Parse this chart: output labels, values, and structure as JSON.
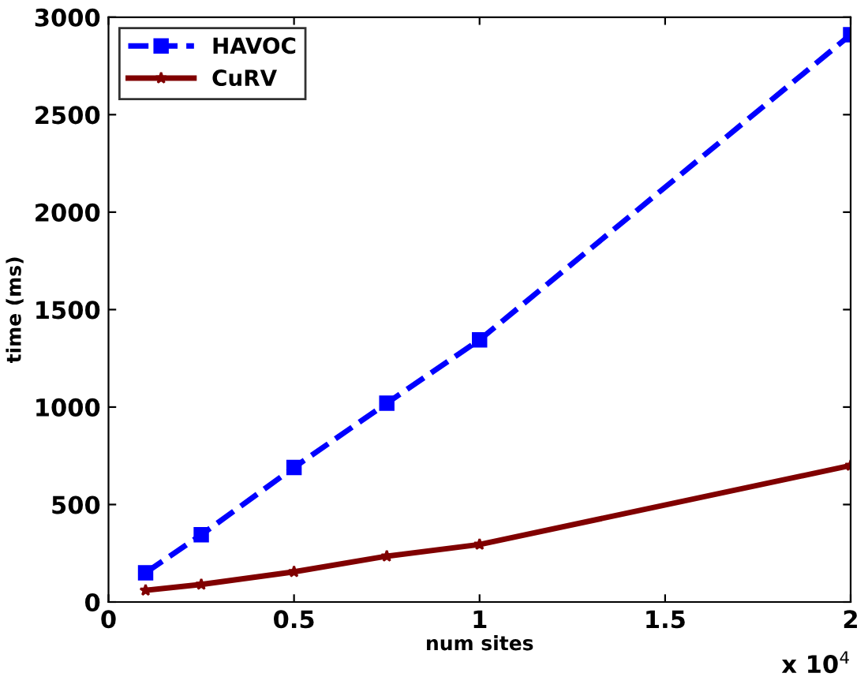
{
  "chart_data": {
    "type": "line",
    "xlabel": "num sites",
    "ylabel": "time (ms)",
    "x": [
      0.1,
      0.25,
      0.5,
      0.75,
      1,
      2
    ],
    "series": [
      {
        "name": "HAVOC",
        "color": "#0000ff",
        "values": [
          150,
          345,
          690,
          1020,
          1345,
          2910
        ],
        "marker": "square",
        "line_style": "dashed"
      },
      {
        "name": "CuRV",
        "color": "#800000",
        "values": [
          60,
          90,
          155,
          235,
          295,
          700
        ],
        "marker": "star",
        "line_style": "solid"
      }
    ],
    "xlim": [
      0,
      2
    ],
    "xticks": [
      0,
      0.5,
      1,
      1.5,
      2
    ],
    "ylim": [
      0,
      3000
    ],
    "yticks": [
      0,
      500,
      1000,
      1500,
      2000,
      2500,
      3000
    ],
    "annotations": [
      "x 10$^{4}$"
    ],
    "grid": false,
    "legend": "top left"
  }
}
